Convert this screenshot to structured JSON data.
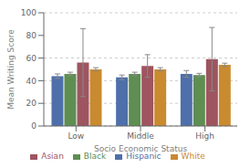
{
  "chart_data": {
    "type": "bar",
    "xlabel": "Socio Economic Status",
    "ylabel": "Mean Writing Score",
    "categories": [
      "Low",
      "Middle",
      "High"
    ],
    "series": [
      {
        "name": "Hispanic",
        "color": "#4e6faa",
        "values": [
          44,
          43,
          46
        ],
        "errors_low": [
          2.0,
          2.0,
          3.0
        ],
        "errors_high": [
          2.0,
          2.0,
          3.0
        ]
      },
      {
        "name": "Black",
        "color": "#5e8e52",
        "values": [
          46,
          46,
          45
        ],
        "errors_low": [
          1.5,
          1.5,
          1.5
        ],
        "errors_high": [
          1.5,
          1.5,
          1.5
        ]
      },
      {
        "name": "Asian",
        "color": "#9e5560",
        "values": [
          56,
          53,
          59
        ],
        "errors_low": [
          30,
          10,
          28
        ],
        "errors_high": [
          30,
          10,
          28
        ]
      },
      {
        "name": "White",
        "color": "#c98a30",
        "values": [
          50,
          50,
          54
        ],
        "errors_low": [
          1.5,
          1.5,
          1.5
        ],
        "errors_high": [
          1.5,
          1.5,
          1.5
        ]
      }
    ],
    "ylim": [
      0,
      100
    ],
    "yticks": [
      0,
      20,
      40,
      60,
      80,
      100
    ],
    "grid": true,
    "legend": "bottom"
  }
}
